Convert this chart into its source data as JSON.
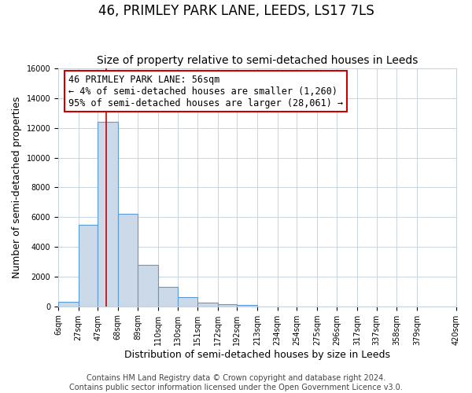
{
  "title": "46, PRIMLEY PARK LANE, LEEDS, LS17 7LS",
  "subtitle": "Size of property relative to semi-detached houses in Leeds",
  "xlabel": "Distribution of semi-detached houses by size in Leeds",
  "ylabel": "Number of semi-detached properties",
  "bar_heights": [
    300,
    5500,
    12400,
    6200,
    2800,
    1300,
    600,
    250,
    150,
    100,
    0,
    0,
    0,
    0,
    0,
    0,
    0,
    0,
    0
  ],
  "bin_edges": [
    6,
    27,
    47,
    68,
    89,
    110,
    130,
    151,
    172,
    192,
    213,
    234,
    254,
    275,
    296,
    317,
    337,
    358,
    379,
    420
  ],
  "tick_labels": [
    "6sqm",
    "27sqm",
    "47sqm",
    "68sqm",
    "89sqm",
    "110sqm",
    "130sqm",
    "151sqm",
    "172sqm",
    "192sqm",
    "213sqm",
    "234sqm",
    "254sqm",
    "275sqm",
    "296sqm",
    "317sqm",
    "337sqm",
    "358sqm",
    "379sqm",
    "420sqm"
  ],
  "bar_color": "#ccd9e8",
  "bar_edge_color": "#5b9bd5",
  "property_line_x": 56,
  "property_line_color": "#cc0000",
  "annotation_line1": "46 PRIMLEY PARK LANE: 56sqm",
  "annotation_line2": "← 4% of semi-detached houses are smaller (1,260)",
  "annotation_line3": "95% of semi-detached houses are larger (28,061) →",
  "annotation_box_facecolor": "#ffffff",
  "annotation_box_edgecolor": "#cc0000",
  "ylim": [
    0,
    16000
  ],
  "yticks": [
    0,
    2000,
    4000,
    6000,
    8000,
    10000,
    12000,
    14000,
    16000
  ],
  "footer_text": "Contains HM Land Registry data © Crown copyright and database right 2024.\nContains public sector information licensed under the Open Government Licence v3.0.",
  "background_color": "#ffffff",
  "plot_background_color": "#ffffff",
  "grid_color": "#c8d4de",
  "title_fontsize": 12,
  "subtitle_fontsize": 10,
  "axis_label_fontsize": 9,
  "tick_fontsize": 7,
  "annotation_fontsize": 8.5,
  "footer_fontsize": 7
}
